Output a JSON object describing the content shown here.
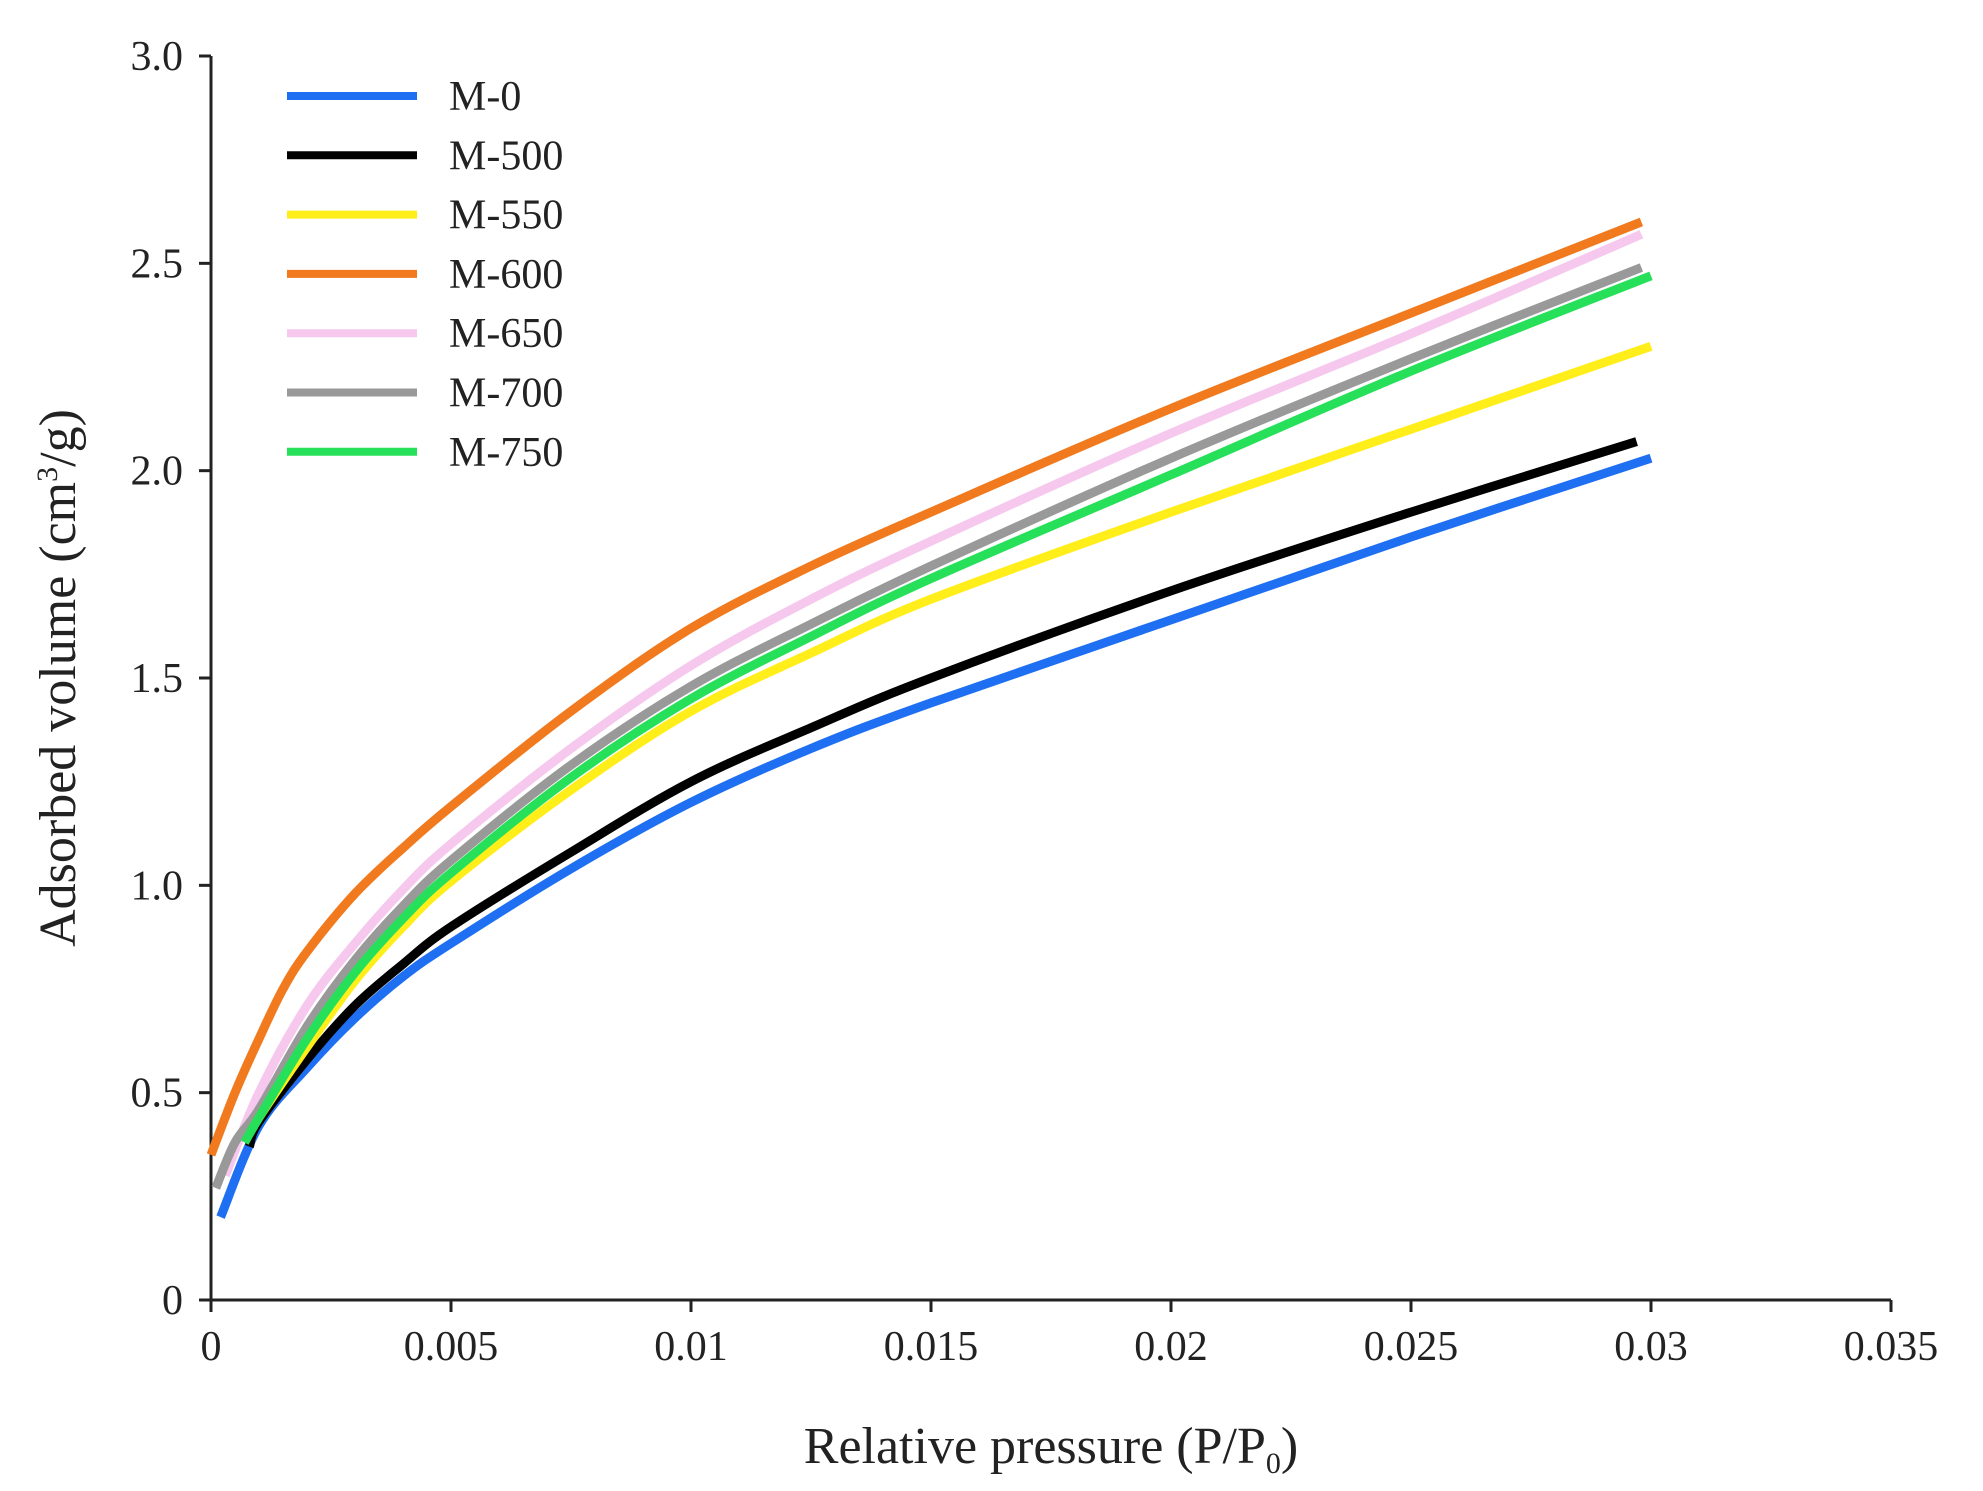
{
  "chart_data": {
    "type": "line",
    "xlabel": "Relative pressure (P/P",
    "xlabel_sub": "0",
    "xlabel_close": ")",
    "ylabel": "Adsorbed volume (cm",
    "ylabel_sup": "3",
    "ylabel_tail": "/g)",
    "xlim": [
      0,
      0.035
    ],
    "ylim": [
      0,
      3.0
    ],
    "x_ticks": [
      "0",
      "0.005",
      "0.01",
      "0.015",
      "0.02",
      "0.025",
      "0.03",
      "0.035"
    ],
    "y_ticks": [
      "0",
      "0.5",
      "1.0",
      "1.5",
      "2.0",
      "2.5",
      "3.0"
    ],
    "grid": false,
    "legend_position": "top-left",
    "series": [
      {
        "name": "M-0",
        "color": "#1f6ff2",
        "x": [
          0.0002,
          0.001,
          0.002,
          0.003,
          0.004,
          0.005,
          0.0075,
          0.01,
          0.0125,
          0.015,
          0.02,
          0.025,
          0.03
        ],
        "y": [
          0.2,
          0.42,
          0.56,
          0.68,
          0.78,
          0.86,
          1.04,
          1.2,
          1.33,
          1.44,
          1.64,
          1.84,
          2.03
        ]
      },
      {
        "name": "M-500",
        "color": "#000000",
        "x": [
          0.0008,
          0.001,
          0.002,
          0.003,
          0.004,
          0.005,
          0.0075,
          0.01,
          0.0125,
          0.015,
          0.02,
          0.025,
          0.0297
        ],
        "y": [
          0.37,
          0.43,
          0.58,
          0.71,
          0.81,
          0.9,
          1.08,
          1.25,
          1.38,
          1.5,
          1.71,
          1.9,
          2.07
        ]
      },
      {
        "name": "M-550",
        "color": "#ffee1a",
        "x": [
          0.0007,
          0.001,
          0.002,
          0.003,
          0.004,
          0.005,
          0.0075,
          0.01,
          0.0125,
          0.015,
          0.02,
          0.025,
          0.03
        ],
        "y": [
          0.38,
          0.44,
          0.61,
          0.77,
          0.9,
          1.01,
          1.23,
          1.42,
          1.56,
          1.69,
          1.9,
          2.1,
          2.3
        ]
      },
      {
        "name": "M-600",
        "color": "#f07a1d",
        "x": [
          0,
          0.0005,
          0.001,
          0.0015,
          0.002,
          0.003,
          0.004,
          0.005,
          0.0075,
          0.01,
          0.0125,
          0.015,
          0.02,
          0.025,
          0.0298
        ],
        "y": [
          0.35,
          0.5,
          0.63,
          0.75,
          0.84,
          0.98,
          1.09,
          1.19,
          1.42,
          1.62,
          1.77,
          1.9,
          2.15,
          2.38,
          2.6
        ]
      },
      {
        "name": "M-650",
        "color": "#f6c8ee",
        "x": [
          0.0003,
          0.001,
          0.002,
          0.003,
          0.004,
          0.005,
          0.0075,
          0.01,
          0.0125,
          0.015,
          0.02,
          0.025,
          0.0298
        ],
        "y": [
          0.3,
          0.5,
          0.71,
          0.86,
          0.99,
          1.1,
          1.33,
          1.53,
          1.69,
          1.83,
          2.09,
          2.33,
          2.57
        ]
      },
      {
        "name": "M-700",
        "color": "#999999",
        "x": [
          0.0001,
          0.0005,
          0.001,
          0.002,
          0.003,
          0.004,
          0.005,
          0.0075,
          0.01,
          0.0125,
          0.015,
          0.02,
          0.025,
          0.0298
        ],
        "y": [
          0.27,
          0.38,
          0.46,
          0.66,
          0.82,
          0.95,
          1.06,
          1.29,
          1.48,
          1.63,
          1.77,
          2.03,
          2.27,
          2.49
        ]
      },
      {
        "name": "M-750",
        "color": "#26e05a",
        "x": [
          0.0007,
          0.001,
          0.002,
          0.003,
          0.004,
          0.005,
          0.0075,
          0.01,
          0.0125,
          0.015,
          0.02,
          0.025,
          0.03
        ],
        "y": [
          0.38,
          0.44,
          0.63,
          0.79,
          0.92,
          1.03,
          1.26,
          1.45,
          1.6,
          1.74,
          1.99,
          2.24,
          2.47
        ]
      }
    ]
  }
}
